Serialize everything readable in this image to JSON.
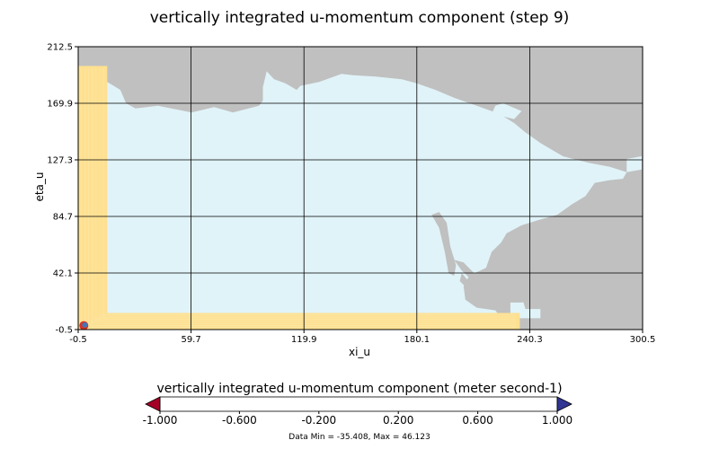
{
  "chart_data": {
    "type": "heatmap",
    "title": "vertically integrated u-momentum component (step 9)",
    "xlabel": "xi_u",
    "ylabel": "eta_u",
    "xlim": [
      -0.5,
      300.5
    ],
    "ylim": [
      -0.5,
      212.5
    ],
    "x_ticks": [
      "-0.5",
      "59.7",
      "119.9",
      "180.1",
      "240.3",
      "300.5"
    ],
    "y_ticks": [
      "-0.5",
      "42.1",
      "84.7",
      "127.3",
      "169.9",
      "212.5"
    ],
    "grid": true,
    "land_color": "#c0c0c0",
    "colorbar": {
      "label": "vertically integrated u-momentum component (meter second-1)",
      "levels": [
        -1.0,
        -0.8,
        -0.6,
        -0.4,
        -0.2,
        0.0,
        0.2,
        0.4,
        0.6,
        0.8,
        1.0
      ],
      "tick_labels": [
        "-1.000",
        "-0.600",
        "-0.200",
        "0.200",
        "0.600",
        "1.000"
      ],
      "colors": [
        "#d73027",
        "#f46d43",
        "#fdae61",
        "#fee090",
        "#e0f3f8",
        "#abd9e9",
        "#74add1",
        "#4575b4"
      ],
      "under_color": "#a50026",
      "over_color": "#313695",
      "extend": "both"
    },
    "data_min": -35.408,
    "data_max": 46.123
  },
  "footer": {
    "min_label": "Data Min = ",
    "min_value": "-35.408",
    "sep": ", Max = ",
    "max_value": "46.123"
  }
}
